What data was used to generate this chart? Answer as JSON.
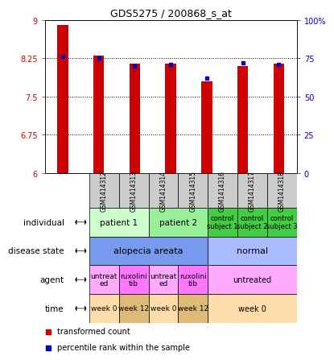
{
  "title": "GDS5275 / 200868_s_at",
  "samples": [
    "GSM1414312",
    "GSM1414313",
    "GSM1414314",
    "GSM1414315",
    "GSM1414316",
    "GSM1414317",
    "GSM1414318"
  ],
  "transformed_count": [
    8.9,
    8.3,
    8.15,
    8.15,
    7.8,
    8.1,
    8.15
  ],
  "percentile_rank": [
    76,
    75,
    70,
    71,
    62,
    72,
    71
  ],
  "ylim_left": [
    6,
    9
  ],
  "ylim_right": [
    0,
    100
  ],
  "yticks_left": [
    6,
    6.75,
    7.5,
    8.25,
    9
  ],
  "yticks_right": [
    0,
    25,
    50,
    75,
    100
  ],
  "ytick_labels_left": [
    "6",
    "6.75",
    "7.5",
    "8.25",
    "9"
  ],
  "ytick_labels_right": [
    "0",
    "25",
    "50",
    "75",
    "100%"
  ],
  "bar_color": "#cc0000",
  "dot_color": "#0000cc",
  "annotation_rows": [
    {
      "label": "individual",
      "cells": [
        {
          "text": "patient 1",
          "colspan": 2,
          "color": "#ccffcc",
          "fontsize": 7.5
        },
        {
          "text": "patient 2",
          "colspan": 2,
          "color": "#99ee99",
          "fontsize": 7.5
        },
        {
          "text": "control\nsubject 1",
          "colspan": 1,
          "color": "#44cc44",
          "fontsize": 6
        },
        {
          "text": "control\nsubject 2",
          "colspan": 1,
          "color": "#44cc44",
          "fontsize": 6
        },
        {
          "text": "control\nsubject 3",
          "colspan": 1,
          "color": "#44cc44",
          "fontsize": 6
        }
      ]
    },
    {
      "label": "disease state",
      "cells": [
        {
          "text": "alopecia areata",
          "colspan": 4,
          "color": "#7799ee",
          "fontsize": 8
        },
        {
          "text": "normal",
          "colspan": 3,
          "color": "#aabbff",
          "fontsize": 8
        }
      ]
    },
    {
      "label": "agent",
      "cells": [
        {
          "text": "untreat\ned",
          "colspan": 1,
          "color": "#ffaaff",
          "fontsize": 6.5
        },
        {
          "text": "ruxolini\ntib",
          "colspan": 1,
          "color": "#ff77ff",
          "fontsize": 6.5
        },
        {
          "text": "untreat\ned",
          "colspan": 1,
          "color": "#ffaaff",
          "fontsize": 6.5
        },
        {
          "text": "ruxolini\ntib",
          "colspan": 1,
          "color": "#ff77ff",
          "fontsize": 6.5
        },
        {
          "text": "untreated",
          "colspan": 3,
          "color": "#ffaaff",
          "fontsize": 7
        }
      ]
    },
    {
      "label": "time",
      "cells": [
        {
          "text": "week 0",
          "colspan": 1,
          "color": "#ffddaa",
          "fontsize": 6.5
        },
        {
          "text": "week 12",
          "colspan": 1,
          "color": "#ddbb77",
          "fontsize": 6.5
        },
        {
          "text": "week 0",
          "colspan": 1,
          "color": "#ffddaa",
          "fontsize": 6.5
        },
        {
          "text": "week 12",
          "colspan": 1,
          "color": "#ddbb77",
          "fontsize": 6.5
        },
        {
          "text": "week 0",
          "colspan": 3,
          "color": "#ffddaa",
          "fontsize": 7
        }
      ]
    }
  ],
  "legend_items": [
    {
      "color": "#cc0000",
      "label": "transformed count"
    },
    {
      "color": "#0000cc",
      "label": "percentile rank within the sample"
    }
  ],
  "sample_header_color": "#cccccc",
  "bg_color": "#ffffff",
  "left_axis_color": "#cc0000",
  "right_axis_color": "#0000cc"
}
